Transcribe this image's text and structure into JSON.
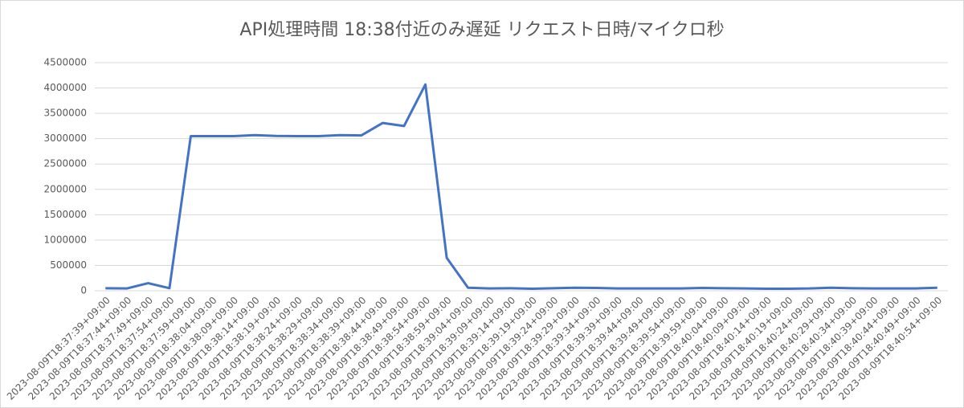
{
  "chart_data": {
    "type": "line",
    "title": "API処理時間 18:38付近のみ遅延 リクエスト日時/マイクロ秒",
    "categories": [
      "2023-08-09T18:37:39+09:00",
      "2023-08-09T18:37:44+09:00",
      "2023-08-09T18:37:49+09:00",
      "2023-08-09T18:37:54+09:00",
      "2023-08-09T18:37:59+09:00",
      "2023-08-09T18:38:04+09:00",
      "2023-08-09T18:38:09+09:00",
      "2023-08-09T18:38:14+09:00",
      "2023-08-09T18:38:19+09:00",
      "2023-08-09T18:38:24+09:00",
      "2023-08-09T18:38:29+09:00",
      "2023-08-09T18:38:34+09:00",
      "2023-08-09T18:38:39+09:00",
      "2023-08-09T18:38:44+09:00",
      "2023-08-09T18:38:49+09:00",
      "2023-08-09T18:38:54+09:00",
      "2023-08-09T18:38:59+09:00",
      "2023-08-09T18:39:04+09:00",
      "2023-08-09T18:39:09+09:00",
      "2023-08-09T18:39:14+09:00",
      "2023-08-09T18:39:19+09:00",
      "2023-08-09T18:39:24+09:00",
      "2023-08-09T18:39:29+09:00",
      "2023-08-09T18:39:34+09:00",
      "2023-08-09T18:39:39+09:00",
      "2023-08-09T18:39:44+09:00",
      "2023-08-09T18:39:49+09:00",
      "2023-08-09T18:39:54+09:00",
      "2023-08-09T18:39:59+09:00",
      "2023-08-09T18:40:04+09:00",
      "2023-08-09T18:40:09+09:00",
      "2023-08-09T18:40:14+09:00",
      "2023-08-09T18:40:19+09:00",
      "2023-08-09T18:40:24+09:00",
      "2023-08-09T18:40:29+09:00",
      "2023-08-09T18:40:34+09:00",
      "2023-08-09T18:40:39+09:00",
      "2023-08-09T18:40:44+09:00",
      "2023-08-09T18:40:49+09:00",
      "2023-08-09T18:40:54+09:00"
    ],
    "values": [
      50000,
      45000,
      150000,
      50000,
      3050000,
      3050000,
      3050000,
      3070000,
      3055000,
      3050000,
      3050000,
      3070000,
      3065000,
      3310000,
      3250000,
      4070000,
      650000,
      60000,
      45000,
      50000,
      40000,
      50000,
      60000,
      55000,
      45000,
      45000,
      45000,
      45000,
      55000,
      50000,
      45000,
      40000,
      40000,
      45000,
      60000,
      50000,
      45000,
      45000,
      45000,
      60000
    ],
    "color": "#4472c4",
    "ylim": [
      0,
      4500000
    ],
    "yticks": [
      0,
      500000,
      1000000,
      1500000,
      2000000,
      2500000,
      3000000,
      3500000,
      4000000,
      4500000
    ],
    "grid": true
  }
}
